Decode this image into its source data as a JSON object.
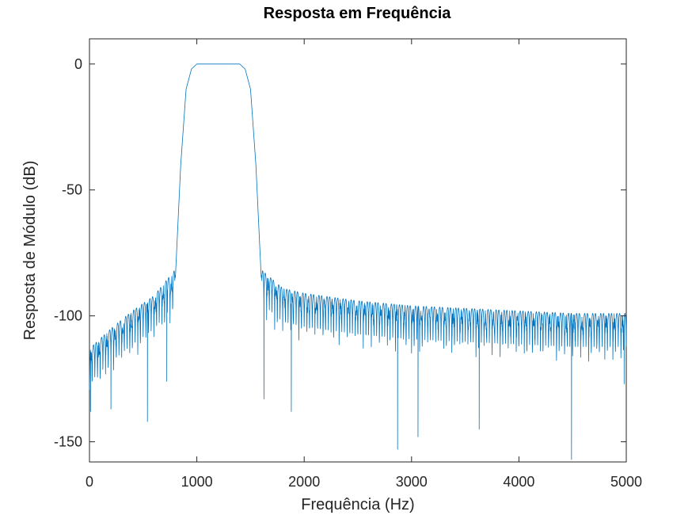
{
  "chart_data": {
    "type": "line",
    "title": "Resposta em Frequência",
    "xlabel": "Frequência (Hz)",
    "ylabel": "Resposta de Módulo (dB)",
    "xlim": [
      0,
      5000
    ],
    "ylim": [
      -158,
      10
    ],
    "xticks": [
      0,
      1000,
      2000,
      3000,
      4000,
      5000
    ],
    "xtick_labels": [
      "0",
      "1000",
      "2000",
      "3000",
      "4000",
      "5000"
    ],
    "yticks": [
      0,
      -50,
      -100,
      -150
    ],
    "ytick_labels": [
      "0",
      "-50",
      "-100",
      "-150"
    ],
    "grid": false,
    "legend": "none",
    "series_color": "#0072bd",
    "series": [
      {
        "passband_db": 0,
        "envelope_db": {
          "x": [
            0,
            200,
            400,
            600,
            790,
            800,
            850,
            900,
            950,
            1000,
            1400,
            1450,
            1500,
            1550,
            1600,
            1610,
            1800,
            2000,
            2500,
            3000,
            3500,
            4000,
            4500,
            5000
          ],
          "y": [
            -113,
            -105,
            -98,
            -92,
            -82,
            -85,
            -40,
            -10,
            -2,
            0,
            0,
            -2,
            -10,
            -40,
            -85,
            -82,
            -89,
            -91,
            -94,
            -96,
            -97,
            -98,
            -99,
            -99
          ]
        },
        "lobe_spacing_hz": 25,
        "notches": [
          {
            "x": 10,
            "y": -138
          },
          {
            "x": 200,
            "y": -137
          },
          {
            "x": 540,
            "y": -142
          },
          {
            "x": 720,
            "y": -126
          },
          {
            "x": 1625,
            "y": -133
          },
          {
            "x": 1880,
            "y": -138
          },
          {
            "x": 2870,
            "y": -153
          },
          {
            "x": 3060,
            "y": -148
          },
          {
            "x": 3630,
            "y": -145
          },
          {
            "x": 4490,
            "y": -157
          },
          {
            "x": 4980,
            "y": -127
          }
        ]
      }
    ]
  }
}
